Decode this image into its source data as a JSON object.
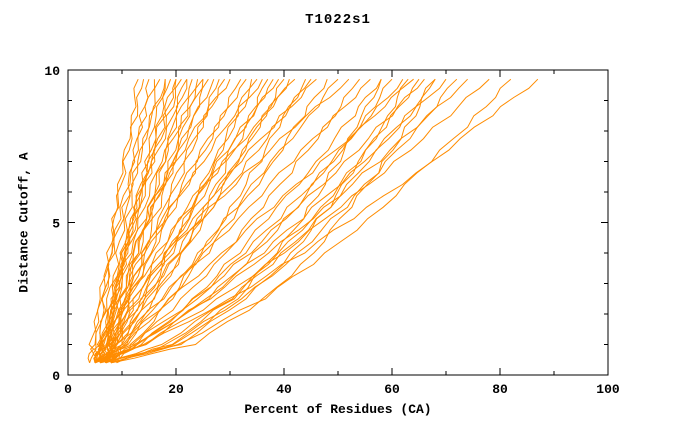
{
  "chart_data": {
    "type": "line",
    "title": "T1022s1",
    "xlabel": "Percent of Residues (CA)",
    "ylabel": "Distance Cutoff, A",
    "xlim": [
      0,
      100
    ],
    "ylim": [
      0,
      10
    ],
    "xticks": [
      0,
      20,
      40,
      60,
      80,
      100
    ],
    "x_minor_step": 10,
    "yticks": [
      0,
      5,
      10
    ],
    "y_minor_step": 1,
    "line_color": "#FF8C00",
    "background": "#FFFFFF",
    "legend": "none",
    "grid": "off",
    "description": "Family of per-model accuracy curves: percent of CA residues (x) under each distance cutoff in Angstroms (y); curves sampled at shared y_grid values",
    "y_grid": [
      0.4,
      1,
      2.5,
      4,
      5.5,
      7,
      8.5,
      9.7
    ],
    "series_x": [
      [
        6,
        6.1,
        6.7,
        7.8,
        9.1,
        10.6,
        12.4,
        14
      ],
      [
        7,
        7.2,
        8.2,
        9.3,
        10.7,
        12.1,
        13.7,
        15
      ],
      [
        5,
        5.3,
        6.6,
        8.2,
        10,
        12,
        14.2,
        16
      ],
      [
        8,
        8.1,
        8.8,
        10,
        11.4,
        13.2,
        15.2,
        17
      ],
      [
        6,
        6.8,
        8.7,
        10.6,
        12.6,
        14.5,
        16.5,
        18
      ],
      [
        7,
        7.3,
        8.7,
        10.5,
        12.5,
        14.7,
        17,
        19
      ],
      [
        5,
        6,
        8.4,
        10.8,
        13.2,
        15.7,
        18.1,
        20
      ],
      [
        8,
        8.2,
        9.1,
        10.6,
        12.6,
        14.9,
        17.6,
        20
      ],
      [
        6,
        6.4,
        8.2,
        10.4,
        12.9,
        15.6,
        18.5,
        21
      ],
      [
        7,
        8,
        10.4,
        12.8,
        15.2,
        17.7,
        20.1,
        22
      ],
      [
        5,
        5.5,
        7.5,
        9.9,
        12.8,
        15.9,
        19.2,
        22
      ],
      [
        8,
        8.4,
        10.2,
        12.4,
        14.9,
        17.6,
        20.5,
        23
      ],
      [
        6,
        7.2,
        10.1,
        13,
        15.9,
        18.8,
        21.7,
        24
      ],
      [
        7,
        7.2,
        8.7,
        10.9,
        13.9,
        17.4,
        21.4,
        25
      ],
      [
        5,
        6.3,
        9.5,
        12.7,
        16,
        19.2,
        22.4,
        25
      ],
      [
        9,
        9.5,
        11.5,
        13.9,
        16.8,
        19.9,
        23.2,
        26
      ],
      [
        6,
        6.6,
        9,
        12.1,
        15.6,
        19.4,
        23.6,
        27
      ],
      [
        7,
        8.4,
        11.7,
        15.1,
        18.5,
        21.9,
        25.3,
        28
      ],
      [
        8,
        8.6,
        11,
        14.1,
        17.6,
        21.4,
        25.6,
        29
      ],
      [
        6,
        6.3,
        8.2,
        11.3,
        15.2,
        19.9,
        25.2,
        30
      ],
      [
        4,
        4.6,
        6,
        7.5,
        8.9,
        10.4,
        11.8,
        13
      ],
      [
        4,
        4.4,
        6,
        8.1,
        10.4,
        13,
        15.7,
        18
      ],
      [
        5,
        6.7,
        11.1,
        15.4,
        19.8,
        24.2,
        28.5,
        32
      ],
      [
        7,
        7.7,
        10.8,
        14.6,
        18.9,
        23.6,
        28.7,
        33
      ],
      [
        6,
        9.1,
        14.5,
        19.1,
        23.3,
        27.3,
        31.1,
        34
      ],
      [
        8,
        9.7,
        14.1,
        18.4,
        22.8,
        27.2,
        31.5,
        35
      ],
      [
        5,
        5.9,
        9.5,
        14,
        19.2,
        24.8,
        30.9,
        36
      ],
      [
        7,
        10.4,
        16.2,
        21,
        25.5,
        29.8,
        33.9,
        37
      ],
      [
        6,
        8.1,
        13.2,
        18.4,
        23.5,
        28.7,
        33.9,
        38
      ],
      [
        8,
        8.9,
        12.5,
        17,
        22.2,
        27.8,
        33.9,
        39
      ],
      [
        5,
        8.9,
        15.7,
        21.4,
        26.6,
        31.6,
        36.3,
        40
      ],
      [
        7,
        9.2,
        14.7,
        20.2,
        25.6,
        31.1,
        36.6,
        41
      ],
      [
        6,
        7,
        11.2,
        16.5,
        22.5,
        29,
        36.1,
        42
      ],
      [
        8,
        12,
        19,
        24.8,
        30.2,
        35.4,
        40.2,
        44
      ],
      [
        5,
        7.6,
        14,
        20.5,
        26.9,
        33.4,
        39.8,
        45
      ],
      [
        7,
        8.1,
        12.7,
        18.3,
        24.8,
        32,
        39.6,
        46
      ],
      [
        6,
        10.7,
        18.8,
        25.7,
        32,
        37.9,
        43.6,
        48
      ],
      [
        8,
        10.7,
        17.5,
        24.3,
        31,
        37.8,
        44.6,
        50
      ],
      [
        5,
        6.3,
        11.8,
        18.7,
        26.5,
        35.1,
        44.3,
        52
      ],
      [
        7,
        12.3,
        21.3,
        29,
        36,
        42.7,
        49.1,
        54
      ],
      [
        6,
        9.2,
        17.3,
        25.4,
        33.4,
        41.5,
        49.6,
        56
      ],
      [
        8,
        13.6,
        23.3,
        31.4,
        38.9,
        46,
        52.8,
        58
      ],
      [
        5,
        14.2,
        26,
        34.7,
        42.2,
        49,
        55.3,
        60
      ],
      [
        7,
        13.2,
        23.8,
        32.7,
        41,
        48.8,
        56.2,
        62
      ],
      [
        6,
        9.7,
        19.1,
        28.4,
        37.8,
        47.2,
        56.5,
        64
      ],
      [
        9,
        18.4,
        30.3,
        39.2,
        46.9,
        53.8,
        60.2,
        65
      ],
      [
        5,
        11.8,
        23.6,
        33.5,
        42.7,
        51.4,
        59.6,
        66
      ],
      [
        7,
        17.2,
        30.2,
        39.9,
        48.3,
        55.8,
        62.7,
        68
      ],
      [
        6,
        13.2,
        25.5,
        36,
        45.6,
        54.6,
        63.3,
        70
      ],
      [
        8,
        18.8,
        32.4,
        42.6,
        51.3,
        59.2,
        66.5,
        72
      ],
      [
        5,
        12.7,
        26,
        37.3,
        47.6,
        57.4,
        66.8,
        74
      ],
      [
        6,
        14.1,
        28,
        39.7,
        50.5,
        60.7,
        70.4,
        78
      ],
      [
        8,
        20.4,
        36.2,
        48,
        58.1,
        67.2,
        75.6,
        82
      ],
      [
        5,
        14.2,
        30,
        43.4,
        55.7,
        67.3,
        78.4,
        87
      ],
      [
        6,
        20.5,
        33.1,
        41.5,
        48.2,
        54.1,
        59.2,
        63
      ],
      [
        7,
        20,
        31.2,
        38.7,
        44.7,
        50,
        54.6,
        58
      ],
      [
        8,
        23.2,
        36.5,
        45.3,
        52.4,
        58.6,
        64,
        68
      ]
    ]
  }
}
